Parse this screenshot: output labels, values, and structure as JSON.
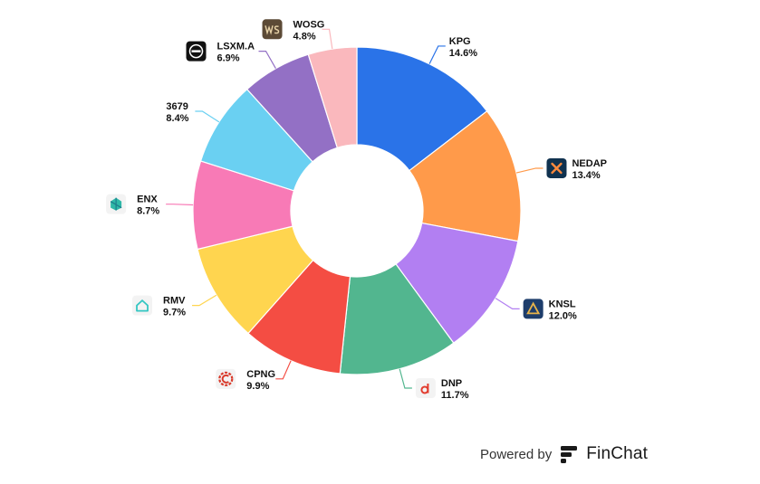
{
  "chart_data": {
    "type": "donut",
    "title": "",
    "legend": "none",
    "slices": [
      {
        "ticker": "KPG",
        "value": 14.6,
        "value_label": "14.6%",
        "color": "#2a73e8",
        "icon": "none"
      },
      {
        "ticker": "NEDAP",
        "value": 13.4,
        "value_label": "13.4%",
        "color": "#ff9a4a",
        "icon": "nedap-star-logo-icon"
      },
      {
        "ticker": "KNSL",
        "value": 12.0,
        "value_label": "12.0%",
        "color": "#b27ff2",
        "icon": "knsl-logo-icon"
      },
      {
        "ticker": "DNP",
        "value": 11.7,
        "value_label": "11.7%",
        "color": "#52b68f",
        "icon": "dnp-logo-icon"
      },
      {
        "ticker": "CPNG",
        "value": 9.9,
        "value_label": "9.9%",
        "color": "#f44d43",
        "icon": "cpng-logo-icon"
      },
      {
        "ticker": "RMV",
        "value": 9.7,
        "value_label": "9.7%",
        "color": "#ffd54f",
        "icon": "rmv-house-logo-icon"
      },
      {
        "ticker": "ENX",
        "value": 8.7,
        "value_label": "8.7%",
        "color": "#f87ab6",
        "icon": "enx-logo-icon"
      },
      {
        "ticker": "3679",
        "value": 8.4,
        "value_label": "8.4%",
        "color": "#6ad0f2",
        "icon": "none"
      },
      {
        "ticker": "LSXM.A",
        "value": 6.9,
        "value_label": "6.9%",
        "color": "#9370c5",
        "icon": "lsxm-logo-icon"
      },
      {
        "ticker": "WOSG",
        "value": 4.8,
        "value_label": "4.8%",
        "color": "#fab8bd",
        "icon": "wosg-logo-icon"
      }
    ]
  },
  "footer": {
    "powered_by": "Powered by",
    "brand": "FinChat",
    "brand_icon": "finchat-logo-icon"
  }
}
